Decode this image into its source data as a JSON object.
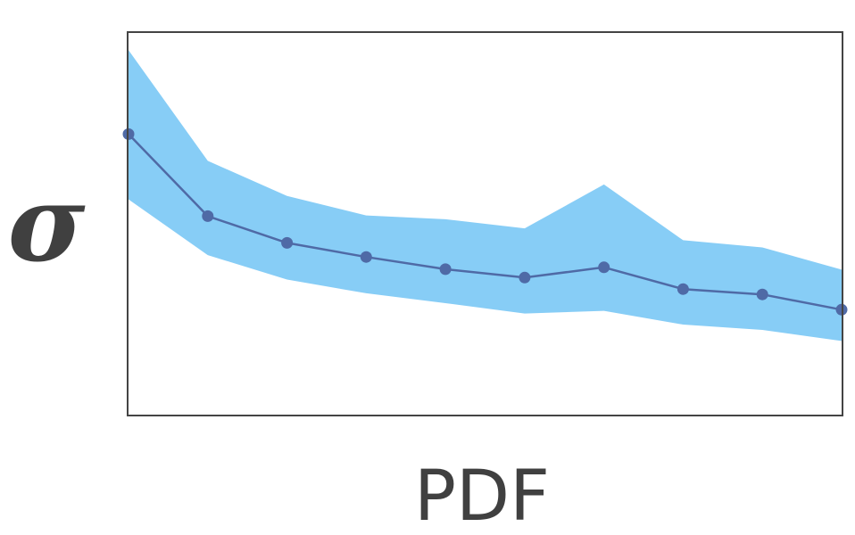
{
  "chart_data": {
    "type": "line",
    "title": "",
    "xlabel": "PDF",
    "ylabel": "σ",
    "x": [
      0,
      1,
      2,
      3,
      4,
      5,
      6,
      7,
      8,
      9
    ],
    "xlim": [
      0,
      9
    ],
    "ylim": [
      0,
      1
    ],
    "series": [
      {
        "values": [
          0.735,
          0.52,
          0.45,
          0.413,
          0.381,
          0.359,
          0.386,
          0.329,
          0.315,
          0.275
        ],
        "lower": [
          0.564,
          0.418,
          0.354,
          0.318,
          0.292,
          0.265,
          0.272,
          0.236,
          0.222,
          0.193
        ],
        "upper": [
          0.955,
          0.665,
          0.573,
          0.522,
          0.512,
          0.488,
          0.603,
          0.457,
          0.438,
          0.38
        ]
      }
    ],
    "grid": false,
    "legend": "none",
    "colors": {
      "line": "#4f6aa6",
      "marker": "#4f6aa6",
      "band": "#87cdf6",
      "frame": "#444444",
      "text": "#404040"
    }
  }
}
